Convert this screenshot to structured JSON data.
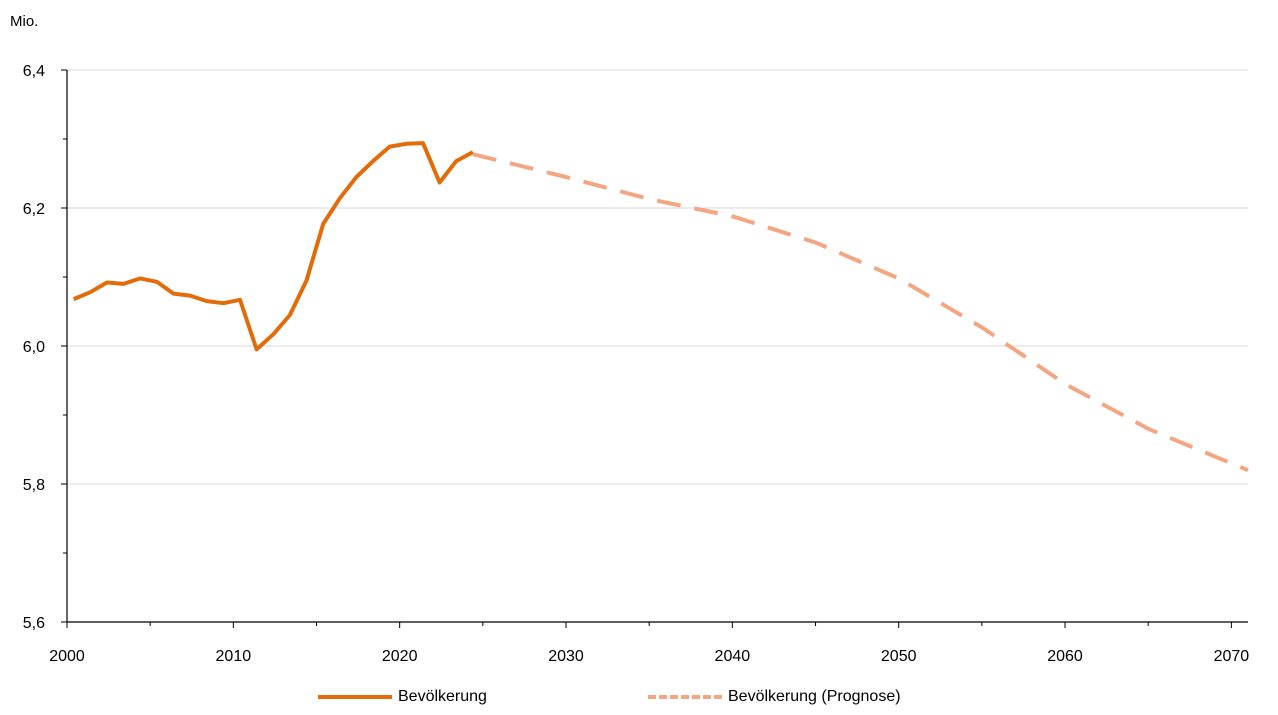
{
  "chart_data": {
    "type": "line",
    "title": "",
    "xlabel": "",
    "ylabel": "Mio.",
    "xlim": [
      2000,
      2071
    ],
    "ylim": [
      5.6,
      6.4
    ],
    "x_ticks": [
      2000,
      2010,
      2020,
      2030,
      2040,
      2050,
      2060,
      2070
    ],
    "x_tick_labels": [
      "2000",
      "2010",
      "2020",
      "2030",
      "2040",
      "2050",
      "2060",
      "2070"
    ],
    "y_ticks": [
      5.6,
      5.8,
      6.0,
      6.2,
      6.4
    ],
    "y_tick_labels": [
      "5,6",
      "5,8",
      "6,0",
      "6,2",
      "6,4"
    ],
    "grid": "horizontal",
    "legend_position": "bottom",
    "series": [
      {
        "name": "Bevölkerung",
        "color": "#E36C0A",
        "style": "solid",
        "x": [
          2000.4,
          2001.4,
          2002.4,
          2003.4,
          2004.4,
          2005.4,
          2006.4,
          2007.4,
          2008.4,
          2009.4,
          2010.4,
          2011.4,
          2012.4,
          2013.4,
          2014.4,
          2015.4,
          2016.4,
          2017.4,
          2018.4,
          2019.4,
          2020.4,
          2021.4,
          2022.4,
          2023.4,
          2024.4
        ],
        "values": [
          6.068,
          6.078,
          6.092,
          6.09,
          6.098,
          6.093,
          6.076,
          6.073,
          6.065,
          6.062,
          6.067,
          5.995,
          6.017,
          6.045,
          6.095,
          6.177,
          6.214,
          6.245,
          6.268,
          6.289,
          6.293,
          6.294,
          6.237,
          6.268,
          6.281
        ]
      },
      {
        "name": "Bevölkerung (Prognose)",
        "color": "#F4A582",
        "style": "dashed",
        "x": [
          2024.4,
          2030,
          2035,
          2040,
          2045,
          2050,
          2055,
          2060,
          2065,
          2071
        ],
        "values": [
          6.278,
          6.245,
          6.213,
          6.188,
          6.15,
          6.098,
          6.027,
          5.945,
          5.88,
          5.82
        ]
      }
    ]
  }
}
